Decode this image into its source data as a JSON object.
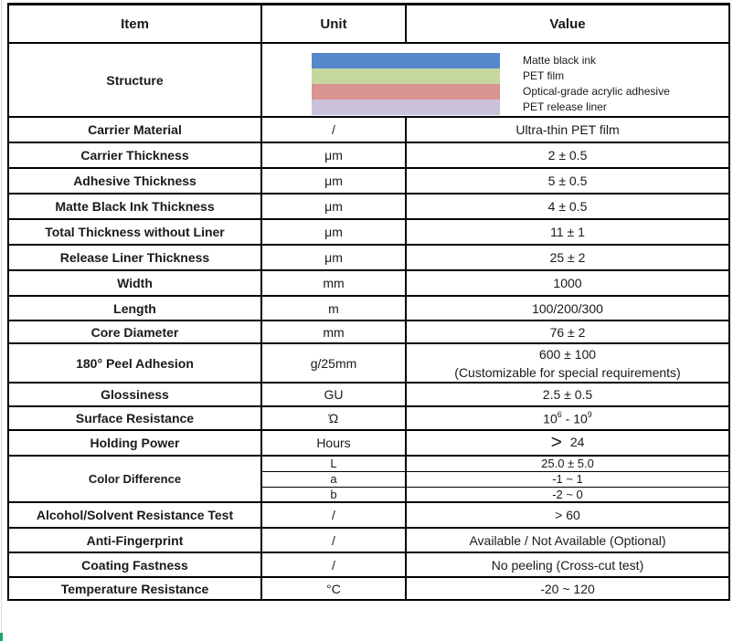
{
  "table": {
    "header": {
      "item": "Item",
      "unit": "Unit",
      "value": "Value"
    },
    "structure": {
      "item": "Structure",
      "layers": [
        {
          "label": "Matte black ink",
          "color": "#5588CB"
        },
        {
          "label": "PET film",
          "color": "#C5D79E"
        },
        {
          "label": "Optical-grade acrylic adhesive",
          "color": "#D99390"
        },
        {
          "label": "PET release liner",
          "color": "#CBC1DB"
        }
      ]
    },
    "rows": [
      {
        "item": "Carrier Material",
        "unit": "/",
        "value": "Ultra-thin PET film"
      },
      {
        "item": "Carrier Thickness",
        "unit": "μm",
        "value": "2 ± 0.5"
      },
      {
        "item": "Adhesive Thickness",
        "unit": "μm",
        "value": "5 ± 0.5"
      },
      {
        "item": "Matte Black Ink Thickness",
        "unit": "μm",
        "value": "4 ± 0.5"
      },
      {
        "item": "Total Thickness without Liner",
        "unit": "μm",
        "value": "11 ± 1"
      },
      {
        "item": "Release Liner Thickness",
        "unit": "μm",
        "value": "25 ± 2"
      },
      {
        "item": "Width",
        "unit": "mm",
        "value": "1000"
      },
      {
        "item": "Length",
        "unit": "m",
        "value": "100/200/300"
      },
      {
        "item": "Core Diameter",
        "unit": "mm",
        "value": "76 ± 2"
      }
    ],
    "peel_adhesion": {
      "item": "180° Peel Adhesion",
      "unit": "g/25mm",
      "value_line1": "600 ± 100",
      "value_line2": "(Customizable for special requirements)"
    },
    "glossiness": {
      "item": "Glossiness",
      "unit": "GU",
      "value": "2.5 ± 0.5"
    },
    "surface_resistance": {
      "item": "Surface Resistance",
      "unit": "Ώ",
      "base_low": "10",
      "exp_low": "6",
      "separator": "-",
      "base_high": "10",
      "exp_high": "9"
    },
    "holding_power": {
      "item": "Holding Power",
      "unit": "Hours",
      "symbol": ">",
      "value": "24"
    },
    "color_difference": {
      "item": "Color Difference",
      "subrows": [
        {
          "unit": "L",
          "value": "25.0 ± 5.0"
        },
        {
          "unit": "a",
          "value": "-1 ~ 1"
        },
        {
          "unit": "b",
          "value": "-2 ~ 0"
        }
      ]
    },
    "rows_bottom": [
      {
        "item": "Alcohol/Solvent Resistance Test",
        "unit": "/",
        "value": "> 60"
      },
      {
        "item": "Anti-Fingerprint",
        "unit": "/",
        "value": "Available / Not Available (Optional)"
      },
      {
        "item": "Coating Fastness",
        "unit": "/",
        "value": "No peeling (Cross-cut test)"
      },
      {
        "item": "Temperature Resistance",
        "unit": "°C",
        "value": "-20 ~ 120"
      }
    ]
  }
}
